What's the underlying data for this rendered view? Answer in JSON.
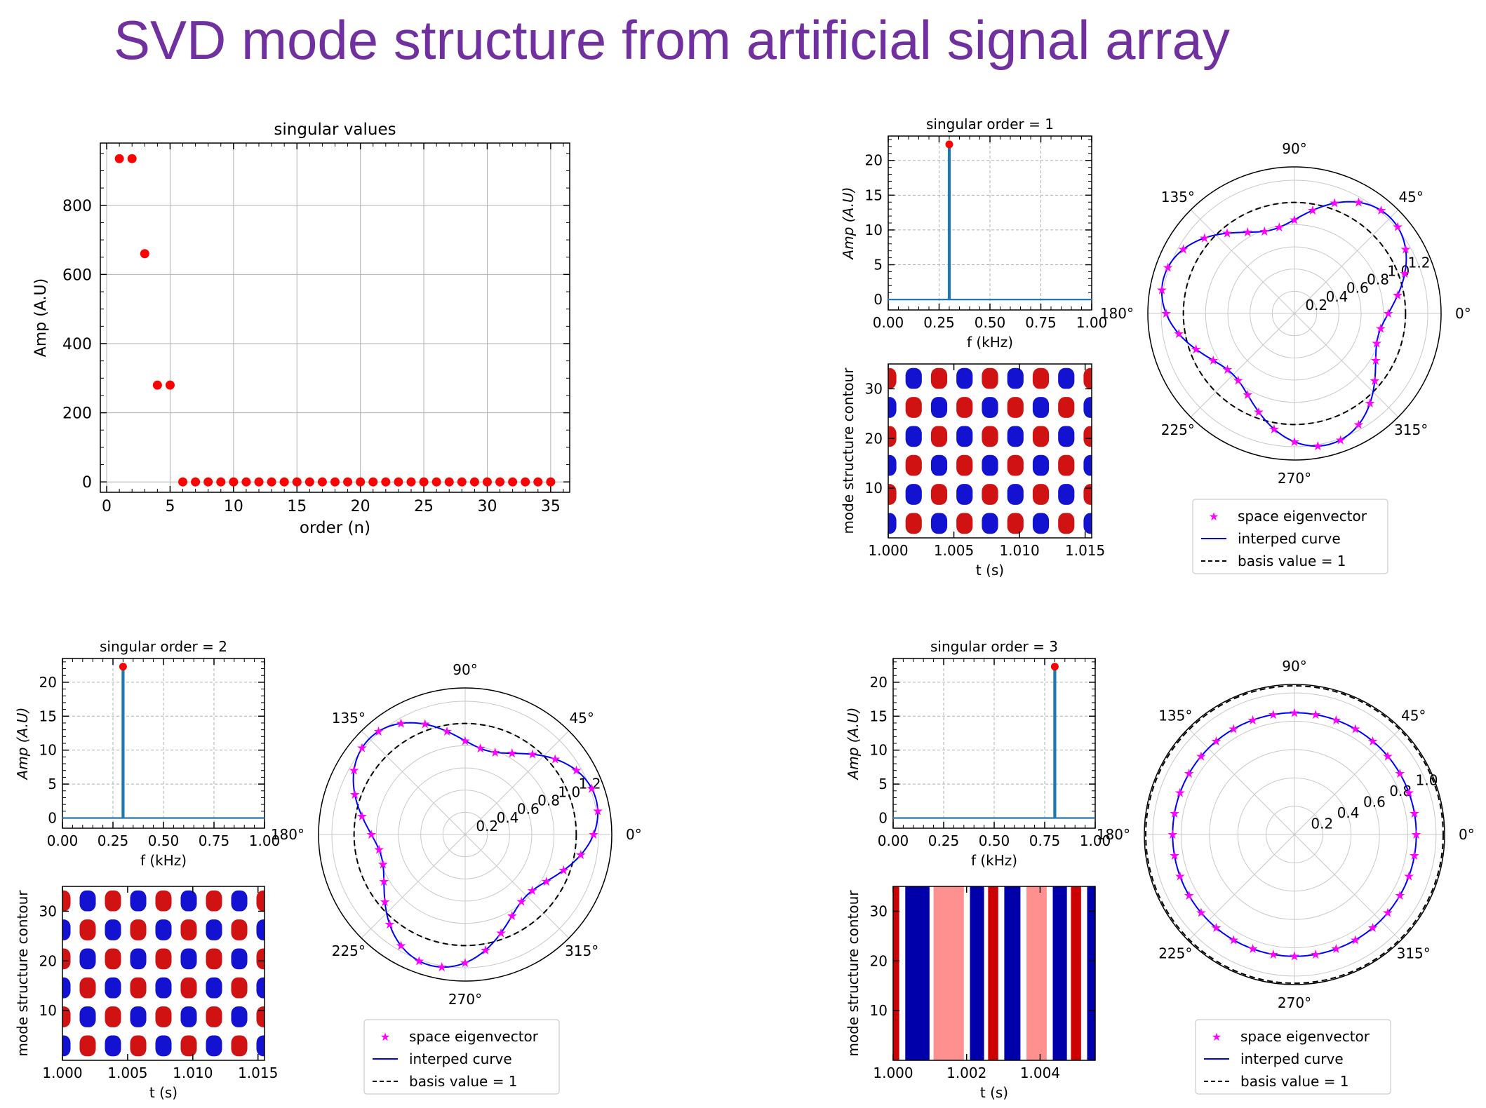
{
  "slide": {
    "title": "SVD mode structure from artificial signal array"
  },
  "colors": {
    "title": "#7030a0",
    "points": "#ff0000",
    "spectrum": "#1f77b4",
    "eigen_markers": "#ff00ff",
    "curve": "#0000ff",
    "basis": "#000000",
    "contour_pos": "#cc0000",
    "contour_neg": "#0000cc"
  },
  "chart_data": [
    {
      "id": "singular_values",
      "type": "scatter",
      "title": "singular values",
      "xlabel": "order (n)",
      "ylabel": "Amp (A.U)",
      "xlim": [
        -0.5,
        36.5
      ],
      "ylim": [
        -30,
        980
      ],
      "xticks": [
        0,
        5,
        10,
        15,
        20,
        25,
        30,
        35
      ],
      "yticks": [
        0,
        200,
        400,
        600,
        800
      ],
      "grid": true,
      "x": [
        1,
        2,
        3,
        4,
        5,
        6,
        7,
        8,
        9,
        10,
        11,
        12,
        13,
        14,
        15,
        16,
        17,
        18,
        19,
        20,
        21,
        22,
        23,
        24,
        25,
        26,
        27,
        28,
        29,
        30,
        31,
        32,
        33,
        34,
        35
      ],
      "y": [
        935,
        935,
        660,
        280,
        280,
        0,
        0,
        0,
        0,
        0,
        0,
        0,
        0,
        0,
        0,
        0,
        0,
        0,
        0,
        0,
        0,
        0,
        0,
        0,
        0,
        0,
        0,
        0,
        0,
        0,
        0,
        0,
        0,
        0,
        0
      ]
    },
    {
      "id": "spectrum_1",
      "type": "line",
      "title": "singular order = 1",
      "xlabel": "f (kHz)",
      "ylabel": "Amp (A.U)",
      "xlim": [
        0,
        1
      ],
      "ylim": [
        -1.5,
        23.5
      ],
      "xticks": [
        "0.00",
        "0.25",
        "0.50",
        "0.75",
        "1.00"
      ],
      "yticks": [
        0,
        5,
        10,
        15,
        20
      ],
      "grid": true,
      "peak": {
        "f": 0.3,
        "amp": 22.3
      }
    },
    {
      "id": "contour_1",
      "type": "heatmap",
      "ylabel": "mode structure contour",
      "xlabel": "t (s)",
      "xlim": [
        1.0,
        1.0155
      ],
      "ylim": [
        0,
        35
      ],
      "xticks": [
        "1.000",
        "1.005",
        "1.010",
        "1.015"
      ],
      "yticks": [
        10,
        20,
        30
      ],
      "pattern": "checker",
      "cols": 8,
      "rows": 6,
      "start": "red"
    },
    {
      "id": "polar_1",
      "type": "line",
      "coord": "polar",
      "angle_labels": [
        "0°",
        "45°",
        "90°",
        "135°",
        "180°",
        "225°",
        "270°",
        "315°"
      ],
      "r_labels": [
        "0.2",
        "0.4",
        "0.6",
        "0.8",
        "1.0",
        "1.2"
      ],
      "rmax": 1.32,
      "basis_r": 1.0,
      "mean_r": 1.0,
      "amp": 0.22,
      "harmonic": 3,
      "phase_deg": 45,
      "legend": [
        "space eigenvector",
        "interped curve",
        "basis value = 1"
      ]
    },
    {
      "id": "spectrum_2",
      "type": "line",
      "title": "singular order = 2",
      "xlabel": "f (kHz)",
      "ylabel": "Amp (A.U)",
      "xlim": [
        0,
        1
      ],
      "ylim": [
        -1.5,
        23.5
      ],
      "xticks": [
        "0.00",
        "0.25",
        "0.50",
        "0.75",
        "1.00"
      ],
      "yticks": [
        0,
        5,
        10,
        15,
        20
      ],
      "grid": true,
      "peak": {
        "f": 0.3,
        "amp": 22.3
      }
    },
    {
      "id": "contour_2",
      "type": "heatmap",
      "ylabel": "mode structure contour",
      "xlabel": "t (s)",
      "xlim": [
        1.0,
        1.0155
      ],
      "ylim": [
        0,
        35
      ],
      "xticks": [
        "1.000",
        "1.005",
        "1.010",
        "1.015"
      ],
      "yticks": [
        10,
        20,
        30
      ],
      "pattern": "checker",
      "cols": 8,
      "rows": 6,
      "start": "red"
    },
    {
      "id": "polar_2",
      "type": "line",
      "coord": "polar",
      "angle_labels": [
        "0°",
        "45°",
        "90°",
        "135°",
        "180°",
        "225°",
        "270°",
        "315°"
      ],
      "r_labels": [
        "0.2",
        "0.4",
        "0.6",
        "0.8",
        "1.0",
        "1.2"
      ],
      "rmax": 1.32,
      "basis_r": 1.0,
      "mean_r": 1.0,
      "amp": 0.22,
      "harmonic": 3,
      "phase_deg": 135,
      "legend": [
        "space eigenvector",
        "interped curve",
        "basis value = 1"
      ]
    },
    {
      "id": "spectrum_3",
      "type": "line",
      "title": "singular order = 3",
      "xlabel": "f (kHz)",
      "ylabel": "Amp (A.U)",
      "xlim": [
        0,
        1
      ],
      "ylim": [
        -1.5,
        23.5
      ],
      "xticks": [
        "0.00",
        "0.25",
        "0.50",
        "0.75",
        "1.00"
      ],
      "yticks": [
        0,
        5,
        10,
        15,
        20
      ],
      "grid": true,
      "peak": {
        "f": 0.8,
        "amp": 22.3
      }
    },
    {
      "id": "contour_3",
      "type": "heatmap",
      "ylabel": "mode structure contour",
      "xlabel": "t (s)",
      "xlim": [
        1.0,
        1.0055
      ],
      "ylim": [
        0,
        35
      ],
      "xticks": [
        "1.000",
        "1.002",
        "1.004"
      ],
      "yticks": [
        10,
        20,
        30
      ],
      "pattern": "stripes"
    },
    {
      "id": "polar_3",
      "type": "line",
      "coord": "polar",
      "angle_labels": [
        "0°",
        "45°",
        "90°",
        "135°",
        "180°",
        "225°",
        "270°",
        "315°"
      ],
      "r_labels": [
        "0.2",
        "0.4",
        "0.6",
        "0.8",
        "1.0"
      ],
      "rmax": 1.06,
      "basis_r": 1.05,
      "mean_r": 0.86,
      "amp": 0,
      "harmonic": 0,
      "phase_deg": 0,
      "legend": [
        "space eigenvector",
        "interped curve",
        "basis value = 1"
      ]
    }
  ]
}
